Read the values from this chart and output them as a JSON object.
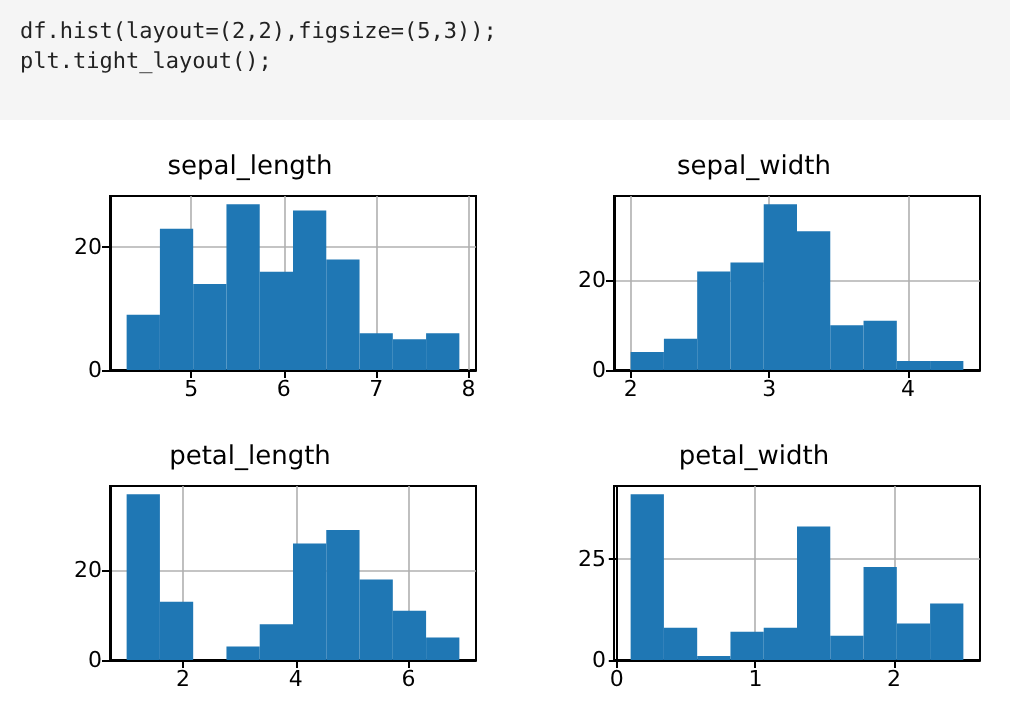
{
  "chart_data": [
    {
      "type": "other",
      "annotations": [
        "df.hist(layout=(2,2),figsize=(5,3));",
        "plt.tight_layout();"
      ]
    },
    {
      "type": "histogram",
      "title": "sepal_length",
      "bins": [
        4.3,
        4.66,
        5.02,
        5.38,
        5.74,
        6.1,
        6.46,
        6.82,
        7.18,
        7.54,
        7.9
      ],
      "values": [
        9,
        23,
        14,
        27,
        16,
        26,
        18,
        6,
        5,
        6
      ],
      "color": "#1f77b4",
      "xlim": [
        4.12,
        8.08
      ],
      "xticks": [
        5,
        6,
        7,
        8
      ],
      "ylim": [
        0,
        28.35
      ],
      "yticks": [
        0,
        20
      ],
      "grid": true
    },
    {
      "type": "histogram",
      "title": "sepal_width",
      "bins": [
        2.0,
        2.24,
        2.48,
        2.72,
        2.96,
        3.2,
        3.44,
        3.68,
        3.92,
        4.16,
        4.4
      ],
      "values": [
        4,
        7,
        22,
        24,
        37,
        31,
        10,
        11,
        2,
        2
      ],
      "color": "#1f77b4",
      "xlim": [
        1.88,
        4.52
      ],
      "xticks": [
        2,
        3,
        4
      ],
      "ylim": [
        0,
        38.85
      ],
      "yticks": [
        0,
        20
      ],
      "grid": true
    },
    {
      "type": "histogram",
      "title": "petal_length",
      "bins": [
        1.0,
        1.59,
        2.18,
        2.77,
        3.36,
        3.95,
        4.54,
        5.13,
        5.72,
        6.31,
        6.9
      ],
      "values": [
        37,
        13,
        0,
        3,
        8,
        26,
        29,
        18,
        11,
        5
      ],
      "color": "#1f77b4",
      "xlim": [
        0.705,
        7.195
      ],
      "xticks": [
        2,
        4,
        6
      ],
      "ylim": [
        0,
        38.85
      ],
      "yticks": [
        0,
        20
      ],
      "grid": true
    },
    {
      "type": "histogram",
      "title": "petal_width",
      "bins": [
        0.1,
        0.34,
        0.58,
        0.82,
        1.06,
        1.3,
        1.54,
        1.78,
        2.02,
        2.26,
        2.5
      ],
      "values": [
        41,
        8,
        1,
        7,
        8,
        33,
        6,
        23,
        9,
        14
      ],
      "color": "#1f77b4",
      "xlim": [
        -0.02,
        2.62
      ],
      "xticks": [
        0,
        1,
        2
      ],
      "ylim": [
        0,
        43.05
      ],
      "yticks": [
        0,
        25
      ],
      "grid": true
    }
  ]
}
